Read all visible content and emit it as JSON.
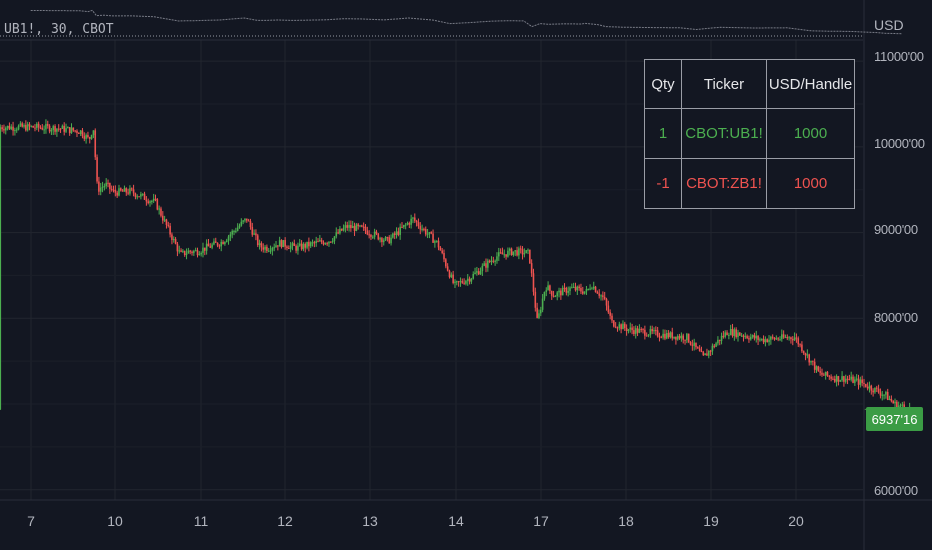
{
  "chart_data": {
    "type": "candlestick",
    "symbol_legend": "UB1!, 30, CBOT",
    "currency": "USD",
    "y_ticks": [
      "11000'00",
      "10000'00",
      "9000'00",
      "8000'00",
      "6000'00"
    ],
    "y_tick_values": [
      11000,
      10000,
      9000,
      8000,
      6000
    ],
    "ylim": [
      5880,
      11200
    ],
    "x_ticks": [
      "7",
      "10",
      "11",
      "12",
      "13",
      "14",
      "17",
      "18",
      "19",
      "20"
    ],
    "last_price_label": "6937'16",
    "last_price": 6937.5,
    "series": [
      {
        "name": "close",
        "x": [
          0,
          0.3,
          0.6,
          0.7,
          0.75,
          0.8,
          0.9,
          1.0,
          1.2,
          1.5,
          1.8,
          1.9,
          2.0,
          2.1,
          2.3,
          2.6,
          2.75,
          2.85,
          3.0,
          3.2,
          3.4,
          3.6,
          3.8,
          4.0,
          4.3,
          4.6,
          4.9,
          5.1,
          5.3,
          5.6,
          5.8,
          6.0,
          6.1,
          6.2,
          6.3,
          6.5,
          6.7,
          6.75,
          6.9,
          7.0,
          7.2,
          7.6,
          7.9,
          8.1,
          8.3,
          8.4,
          8.8,
          9.2,
          9.5,
          9.7,
          9.8,
          10.0,
          10.3,
          10.4,
          10.6
        ],
        "values": [
          10230,
          10220,
          10180,
          10080,
          10240,
          9500,
          9560,
          9470,
          9480,
          9350,
          8740,
          8780,
          8780,
          8820,
          8890,
          9160,
          8840,
          8820,
          8880,
          8820,
          8870,
          8910,
          9070,
          9040,
          8900,
          9160,
          8870,
          8380,
          8480,
          8720,
          8780,
          8760,
          7950,
          8380,
          8270,
          8350,
          8310,
          8400,
          8230,
          7950,
          7870,
          7810,
          7780,
          7540,
          7760,
          7850,
          7750,
          7780,
          7350,
          7300,
          7300,
          7250,
          7100,
          7000,
          6937
        ]
      }
    ]
  },
  "overview": {
    "label": "navigator"
  },
  "table": {
    "headers": [
      "Qty",
      "Ticker",
      "USD/Handle"
    ],
    "rows": [
      {
        "qty": "1",
        "ticker": "CBOT:UB1!",
        "usd": "1000"
      },
      {
        "qty": "-1",
        "ticker": "CBOT:ZB1!",
        "usd": "1000"
      }
    ]
  },
  "colors": {
    "up": "#4caf50",
    "down": "#ef5350",
    "background": "#131722",
    "grid": "#22262f",
    "badge": "#3b9c45"
  }
}
